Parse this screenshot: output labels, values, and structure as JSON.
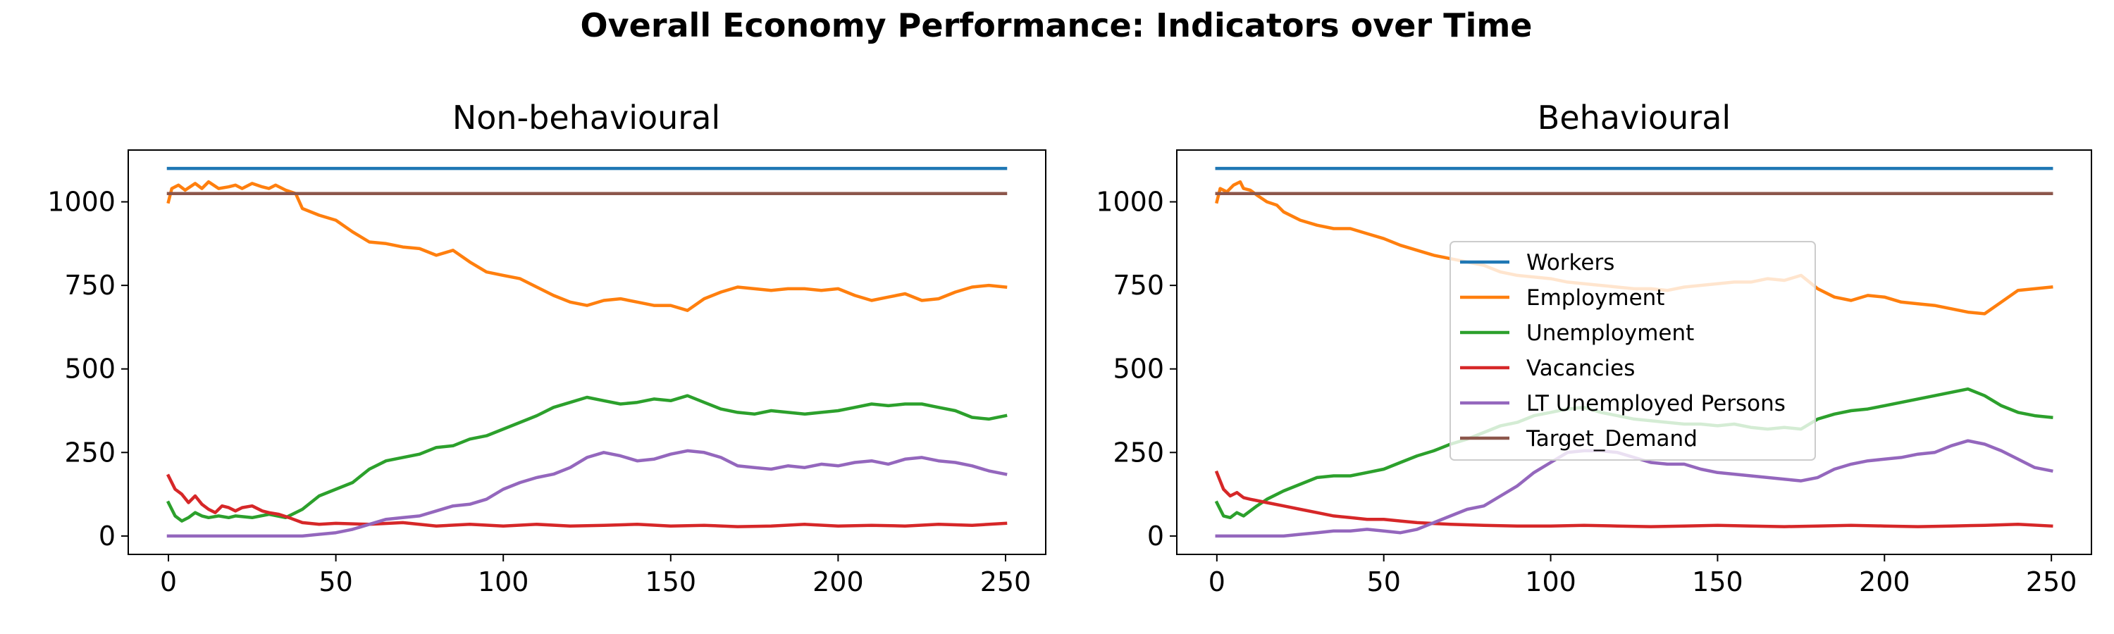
{
  "figure": {
    "suptitle": "Overall Economy Performance: Indicators over Time"
  },
  "chart_data": [
    {
      "type": "line",
      "title": "Non-behavioural",
      "xlabel": "",
      "ylabel": "",
      "xlim": [
        -12,
        262
      ],
      "ylim": [
        -55,
        1155
      ],
      "xticks": [
        0,
        50,
        100,
        150,
        200,
        250
      ],
      "yticks": [
        0,
        250,
        500,
        750,
        1000
      ],
      "legend": null,
      "series": [
        {
          "name": "Workers",
          "color": "#1f77b4",
          "x": [
            0,
            250
          ],
          "y": [
            1100,
            1100
          ]
        },
        {
          "name": "Employment",
          "color": "#ff7f0e",
          "x": [
            0,
            1,
            3,
            5,
            8,
            10,
            12,
            15,
            18,
            20,
            22,
            25,
            28,
            30,
            32,
            35,
            38,
            40,
            45,
            50,
            55,
            60,
            65,
            70,
            75,
            80,
            85,
            90,
            95,
            100,
            105,
            110,
            115,
            120,
            125,
            130,
            135,
            140,
            145,
            150,
            155,
            160,
            165,
            170,
            175,
            180,
            185,
            190,
            195,
            200,
            205,
            210,
            215,
            220,
            225,
            230,
            235,
            240,
            245,
            250
          ],
          "y": [
            1000,
            1040,
            1050,
            1035,
            1055,
            1040,
            1060,
            1040,
            1045,
            1050,
            1040,
            1055,
            1045,
            1040,
            1050,
            1035,
            1025,
            980,
            960,
            945,
            910,
            880,
            875,
            865,
            860,
            840,
            855,
            820,
            790,
            780,
            770,
            745,
            720,
            700,
            690,
            705,
            710,
            700,
            690,
            690,
            675,
            710,
            730,
            745,
            740,
            735,
            740,
            740,
            735,
            740,
            720,
            705,
            715,
            725,
            705,
            710,
            730,
            745,
            750,
            745
          ]
        },
        {
          "name": "Unemployment",
          "color": "#2ca02c",
          "x": [
            0,
            2,
            4,
            6,
            8,
            10,
            12,
            15,
            18,
            20,
            25,
            30,
            35,
            40,
            45,
            50,
            55,
            60,
            65,
            70,
            75,
            80,
            85,
            90,
            95,
            100,
            105,
            110,
            115,
            120,
            125,
            130,
            135,
            140,
            145,
            150,
            155,
            160,
            165,
            170,
            175,
            180,
            185,
            190,
            195,
            200,
            205,
            210,
            215,
            220,
            225,
            230,
            235,
            240,
            245,
            250
          ],
          "y": [
            100,
            60,
            45,
            55,
            70,
            60,
            55,
            60,
            55,
            60,
            55,
            65,
            55,
            80,
            120,
            140,
            160,
            200,
            225,
            235,
            245,
            265,
            270,
            290,
            300,
            320,
            340,
            360,
            385,
            400,
            415,
            405,
            395,
            400,
            410,
            405,
            420,
            400,
            380,
            370,
            365,
            375,
            370,
            365,
            370,
            375,
            385,
            395,
            390,
            395,
            395,
            385,
            375,
            355,
            350,
            360
          ]
        },
        {
          "name": "Vacancies",
          "color": "#d62728",
          "x": [
            0,
            2,
            4,
            6,
            8,
            10,
            12,
            14,
            16,
            18,
            20,
            22,
            25,
            28,
            30,
            33,
            36,
            40,
            45,
            50,
            60,
            70,
            80,
            90,
            100,
            110,
            120,
            130,
            140,
            150,
            160,
            170,
            180,
            190,
            200,
            210,
            220,
            230,
            240,
            250
          ],
          "y": [
            180,
            140,
            125,
            100,
            120,
            95,
            80,
            70,
            90,
            85,
            75,
            85,
            90,
            75,
            70,
            65,
            55,
            40,
            35,
            38,
            35,
            40,
            30,
            35,
            30,
            35,
            30,
            32,
            35,
            30,
            32,
            28,
            30,
            35,
            30,
            32,
            30,
            35,
            32,
            38
          ]
        },
        {
          "name": "LT Unemployed Persons",
          "color": "#9467bd",
          "x": [
            0,
            10,
            20,
            30,
            40,
            45,
            50,
            55,
            60,
            65,
            70,
            75,
            80,
            85,
            90,
            95,
            100,
            105,
            110,
            115,
            120,
            125,
            130,
            135,
            140,
            145,
            150,
            155,
            160,
            165,
            170,
            175,
            180,
            185,
            190,
            195,
            200,
            205,
            210,
            215,
            220,
            225,
            230,
            235,
            240,
            245,
            250
          ],
          "y": [
            0,
            0,
            0,
            0,
            0,
            5,
            10,
            20,
            35,
            50,
            55,
            60,
            75,
            90,
            95,
            110,
            140,
            160,
            175,
            185,
            205,
            235,
            250,
            240,
            225,
            230,
            245,
            255,
            250,
            235,
            210,
            205,
            200,
            210,
            205,
            215,
            210,
            220,
            225,
            215,
            230,
            235,
            225,
            220,
            210,
            195,
            185
          ]
        },
        {
          "name": "Target_Demand",
          "color": "#8c564b",
          "x": [
            0,
            250
          ],
          "y": [
            1025,
            1025
          ]
        }
      ]
    },
    {
      "type": "line",
      "title": "Behavioural",
      "xlabel": "",
      "ylabel": "",
      "xlim": [
        -12,
        262
      ],
      "ylim": [
        -55,
        1155
      ],
      "xticks": [
        0,
        50,
        100,
        150,
        200,
        250
      ],
      "yticks": [
        0,
        250,
        500,
        750,
        1000
      ],
      "legend": "center",
      "series": [
        {
          "name": "Workers",
          "color": "#1f77b4",
          "x": [
            0,
            250
          ],
          "y": [
            1100,
            1100
          ]
        },
        {
          "name": "Employment",
          "color": "#ff7f0e",
          "x": [
            0,
            1,
            3,
            5,
            7,
            8,
            10,
            12,
            15,
            18,
            20,
            25,
            30,
            35,
            40,
            45,
            50,
            55,
            60,
            65,
            70,
            75,
            80,
            85,
            90,
            95,
            100,
            105,
            110,
            115,
            120,
            125,
            130,
            135,
            140,
            145,
            150,
            155,
            160,
            165,
            170,
            175,
            180,
            185,
            190,
            195,
            200,
            205,
            210,
            215,
            220,
            225,
            230,
            235,
            240,
            245,
            250
          ],
          "y": [
            1000,
            1040,
            1030,
            1050,
            1060,
            1040,
            1035,
            1020,
            1000,
            990,
            970,
            945,
            930,
            920,
            920,
            905,
            890,
            870,
            855,
            840,
            830,
            820,
            810,
            790,
            780,
            775,
            770,
            760,
            755,
            750,
            745,
            740,
            740,
            735,
            745,
            750,
            755,
            760,
            760,
            770,
            765,
            780,
            740,
            715,
            705,
            720,
            715,
            700,
            695,
            690,
            680,
            670,
            665,
            700,
            735,
            740,
            745
          ]
        },
        {
          "name": "Unemployment",
          "color": "#2ca02c",
          "x": [
            0,
            2,
            4,
            6,
            8,
            10,
            12,
            15,
            20,
            25,
            30,
            35,
            40,
            45,
            50,
            55,
            60,
            65,
            70,
            75,
            80,
            85,
            90,
            95,
            100,
            105,
            110,
            115,
            120,
            125,
            130,
            135,
            140,
            145,
            150,
            155,
            160,
            165,
            170,
            175,
            180,
            185,
            190,
            195,
            200,
            205,
            210,
            215,
            220,
            225,
            230,
            235,
            240,
            245,
            250
          ],
          "y": [
            100,
            60,
            55,
            70,
            60,
            75,
            90,
            110,
            135,
            155,
            175,
            180,
            180,
            190,
            200,
            220,
            240,
            255,
            275,
            290,
            310,
            330,
            340,
            360,
            370,
            380,
            385,
            370,
            360,
            350,
            345,
            340,
            335,
            335,
            330,
            335,
            325,
            320,
            325,
            320,
            350,
            365,
            375,
            380,
            390,
            400,
            410,
            420,
            430,
            440,
            420,
            390,
            370,
            360,
            355
          ]
        },
        {
          "name": "Vacancies",
          "color": "#d62728",
          "x": [
            0,
            2,
            4,
            6,
            8,
            10,
            15,
            20,
            25,
            30,
            35,
            40,
            45,
            50,
            55,
            60,
            70,
            80,
            90,
            100,
            110,
            120,
            130,
            140,
            150,
            160,
            170,
            180,
            190,
            200,
            210,
            220,
            230,
            240,
            250
          ],
          "y": [
            190,
            140,
            120,
            130,
            115,
            110,
            100,
            90,
            80,
            70,
            60,
            55,
            50,
            50,
            45,
            40,
            35,
            32,
            30,
            30,
            32,
            30,
            28,
            30,
            32,
            30,
            28,
            30,
            32,
            30,
            28,
            30,
            32,
            35,
            30
          ]
        },
        {
          "name": "LT Unemployed Persons",
          "color": "#9467bd",
          "x": [
            0,
            10,
            20,
            25,
            30,
            35,
            40,
            45,
            50,
            55,
            60,
            65,
            70,
            75,
            80,
            85,
            90,
            95,
            100,
            105,
            110,
            115,
            120,
            125,
            130,
            135,
            140,
            145,
            150,
            155,
            160,
            165,
            170,
            175,
            180,
            185,
            190,
            195,
            200,
            205,
            210,
            215,
            220,
            225,
            230,
            235,
            240,
            245,
            250
          ],
          "y": [
            0,
            0,
            0,
            5,
            10,
            15,
            15,
            20,
            15,
            10,
            20,
            40,
            60,
            80,
            90,
            120,
            150,
            190,
            220,
            250,
            255,
            255,
            250,
            235,
            220,
            215,
            215,
            200,
            190,
            185,
            180,
            175,
            170,
            165,
            175,
            200,
            215,
            225,
            230,
            235,
            245,
            250,
            270,
            285,
            275,
            255,
            230,
            205,
            195
          ]
        },
        {
          "name": "Target_Demand",
          "color": "#8c564b",
          "x": [
            0,
            250
          ],
          "y": [
            1025,
            1025
          ]
        }
      ]
    }
  ]
}
